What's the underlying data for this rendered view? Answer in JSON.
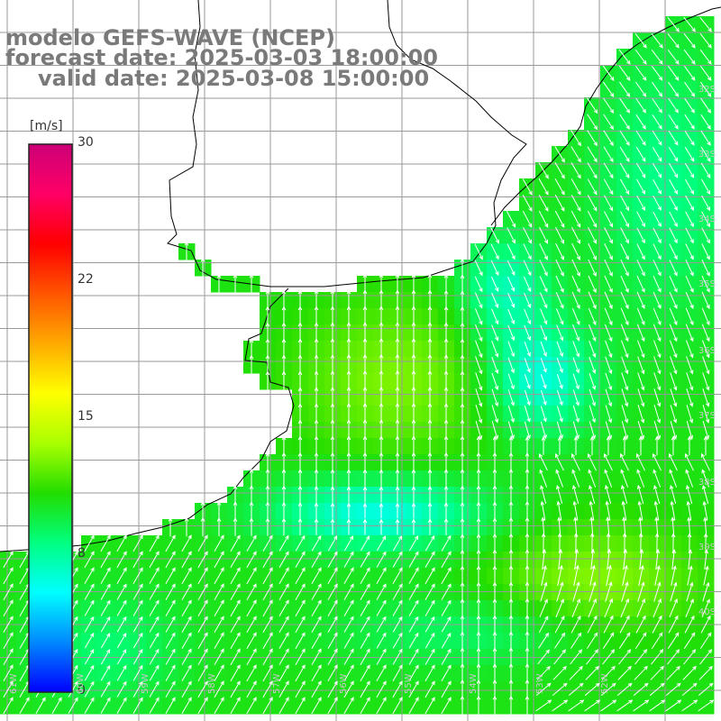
{
  "title": {
    "model": "modelo GEFS-WAVE (NCEP)",
    "forecast": "forecast date: 2025-03-03 18:00:00",
    "valid": "valid date: 2025-03-08 15:00:00"
  },
  "colorbar": {
    "unit": "[m/s]",
    "ticks": [
      "30",
      "22",
      "15",
      "8",
      "0"
    ],
    "tick_values": [
      30,
      22,
      15,
      8,
      0
    ],
    "range": [
      0,
      30
    ],
    "colors": [
      "#0000ff",
      "#0088ff",
      "#00ffff",
      "#00ff80",
      "#22dd00",
      "#aaff00",
      "#ffff00",
      "#ffaa00",
      "#ff5500",
      "#ff0000",
      "#ff0066",
      "#cc0077"
    ]
  },
  "map": {
    "lat_labels": [
      "32S",
      "33S",
      "34S",
      "35S",
      "36S",
      "37S",
      "38S",
      "39S",
      "40S"
    ],
    "lon_labels": [
      "61W",
      "60W",
      "59W",
      "58W",
      "57W",
      "56W",
      "55W",
      "54W",
      "53W",
      "52W"
    ],
    "land_color": "#ffffff",
    "grid_color": "#9a9a9a",
    "coast_color": "#000000",
    "arrow_color": "#ffffff",
    "variable": "wind speed and direction"
  }
}
